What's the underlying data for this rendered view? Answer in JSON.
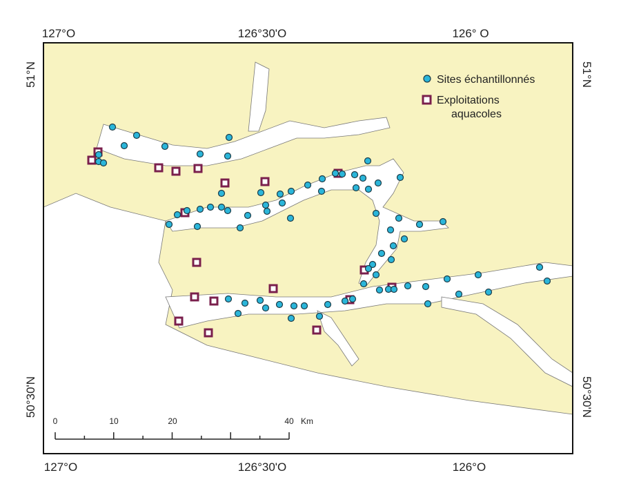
{
  "map": {
    "top_labels": [
      "127°O",
      "126°30'O",
      "126° O"
    ],
    "bottom_labels": [
      "127°O",
      "126°30'O",
      "126°O"
    ],
    "left_labels": [
      "51°N",
      "50°30'N"
    ],
    "right_labels": [
      "51°N",
      "50°30'N"
    ],
    "legend": {
      "sites": "Sites échantillonnés",
      "farms_line1": "Exploitations",
      "farms_line2": "aquacoles"
    },
    "scale": {
      "ticks": [
        "0",
        "10",
        "20",
        "40"
      ],
      "unit": "Km"
    }
  }
}
